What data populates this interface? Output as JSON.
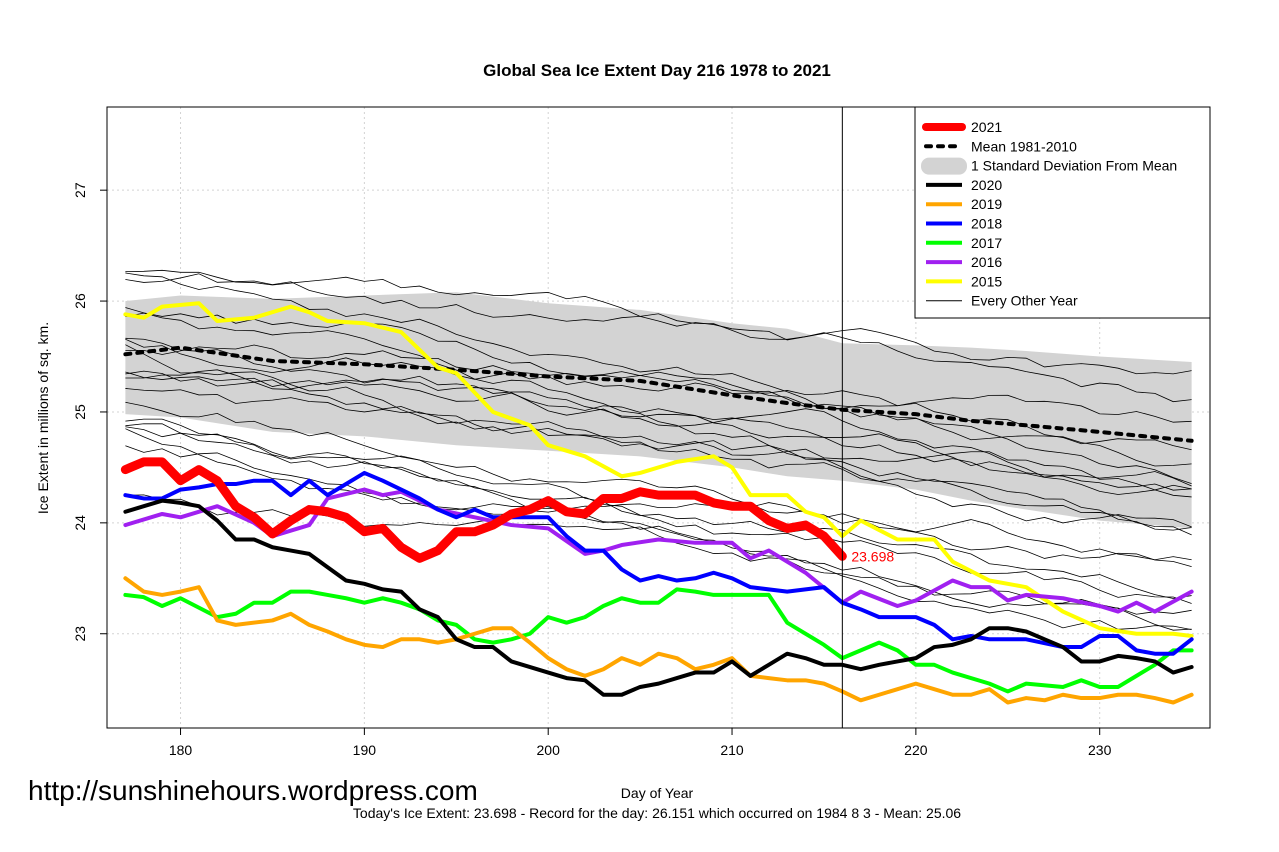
{
  "chart_data": {
    "type": "line",
    "title": "Global Sea Ice Extent Day 216 1978 to 2021",
    "xlabel": "Day of Year",
    "ylabel": "Ice Extent in millions of sq. km.",
    "xlim": [
      176,
      236
    ],
    "ylim": [
      22.15,
      27.75
    ],
    "x_ticks": [
      180,
      190,
      200,
      210,
      220,
      230
    ],
    "y_ticks": [
      23,
      24,
      25,
      26,
      27
    ],
    "x_tick_labels": [
      "180",
      "190",
      "200",
      "210",
      "220",
      "230"
    ],
    "y_tick_labels": [
      "23",
      "24",
      "25",
      "26",
      "27"
    ],
    "grid": true,
    "current_day": 216,
    "current_value_label": "23.698",
    "footer": "Today's Ice Extent: 23.698  - Record for the day: 26.151 which occurred on 1984 8 3  - Mean: 25.06",
    "watermark": "http://sunshinehours.wordpress.com",
    "legend": [
      {
        "label": "2021",
        "color": "#ff0000",
        "style": "thick"
      },
      {
        "label": "Mean 1981-2010",
        "color": "#000000",
        "style": "dotted"
      },
      {
        "label": "1 Standard Deviation From Mean",
        "color": "#d3d3d3",
        "style": "band"
      },
      {
        "label": "2020",
        "color": "#000000",
        "style": "line"
      },
      {
        "label": "2019",
        "color": "#ffa500",
        "style": "line"
      },
      {
        "label": "2018",
        "color": "#0000ff",
        "style": "line"
      },
      {
        "label": "2017",
        "color": "#00ff00",
        "style": "line"
      },
      {
        "label": "2016",
        "color": "#a020f0",
        "style": "line"
      },
      {
        "label": "2015",
        "color": "#ffff00",
        "style": "line"
      },
      {
        "label": "Every Other Year",
        "color": "#000000",
        "style": "thin"
      }
    ],
    "mean": {
      "x": [
        177,
        180,
        185,
        190,
        195,
        200,
        205,
        210,
        213,
        216,
        220,
        223,
        226,
        230,
        235
      ],
      "y": [
        25.52,
        25.58,
        25.46,
        25.43,
        25.38,
        25.32,
        25.28,
        25.15,
        25.08,
        25.02,
        24.98,
        24.92,
        24.88,
        24.82,
        24.74
      ]
    },
    "std_band": {
      "x": [
        177,
        180,
        185,
        190,
        195,
        200,
        205,
        210,
        213,
        216,
        220,
        223,
        226,
        230,
        235
      ],
      "upper": [
        26.0,
        26.05,
        26.02,
        26.05,
        26.08,
        25.98,
        25.92,
        25.8,
        25.75,
        25.62,
        25.6,
        25.58,
        25.55,
        25.5,
        25.45
      ],
      "lower": [
        24.98,
        24.95,
        24.82,
        24.78,
        24.7,
        24.65,
        24.6,
        24.5,
        24.42,
        24.38,
        24.3,
        24.2,
        24.12,
        24.02,
        23.95
      ]
    },
    "series": [
      {
        "name": "2015",
        "color": "#ffff00",
        "width": 4,
        "x": [
          177,
          178,
          179,
          181,
          182,
          184,
          186,
          187,
          188,
          190,
          192,
          194,
          195,
          197,
          199,
          200,
          202,
          204,
          205,
          207,
          209,
          210,
          211,
          213,
          214,
          215,
          216,
          217,
          219,
          221,
          222,
          224,
          226,
          228,
          230,
          232,
          234,
          235
        ],
        "y": [
          25.88,
          25.85,
          25.95,
          25.98,
          25.82,
          25.85,
          25.95,
          25.9,
          25.82,
          25.8,
          25.72,
          25.4,
          25.35,
          25.0,
          24.88,
          24.7,
          24.6,
          24.42,
          24.45,
          24.55,
          24.6,
          24.5,
          24.25,
          24.25,
          24.1,
          24.05,
          23.88,
          24.02,
          23.85,
          23.85,
          23.65,
          23.48,
          23.42,
          23.2,
          23.05,
          23.0,
          23.0,
          22.98
        ]
      },
      {
        "name": "2016",
        "color": "#a020f0",
        "width": 4,
        "x": [
          177,
          179,
          180,
          182,
          184,
          185,
          187,
          188,
          190,
          191,
          192,
          194,
          196,
          198,
          200,
          202,
          203,
          204,
          206,
          208,
          210,
          211,
          212,
          214,
          216,
          217,
          219,
          220,
          222,
          223,
          224,
          225,
          226,
          228,
          230,
          231,
          232,
          233,
          235
        ],
        "y": [
          23.98,
          24.08,
          24.05,
          24.15,
          24.0,
          23.88,
          23.98,
          24.22,
          24.3,
          24.25,
          24.28,
          24.12,
          24.05,
          23.98,
          23.95,
          23.72,
          23.75,
          23.8,
          23.85,
          23.82,
          23.82,
          23.68,
          23.75,
          23.55,
          23.28,
          23.38,
          23.25,
          23.3,
          23.48,
          23.42,
          23.42,
          23.3,
          23.35,
          23.32,
          23.25,
          23.2,
          23.28,
          23.2,
          23.38
        ]
      },
      {
        "name": "2017",
        "color": "#00ff00",
        "width": 4,
        "x": [
          177,
          178,
          179,
          180,
          182,
          183,
          184,
          185,
          186,
          187,
          188,
          189,
          190,
          191,
          192,
          193,
          194,
          195,
          196,
          197,
          198,
          199,
          200,
          201,
          202,
          203,
          204,
          205,
          206,
          207,
          208,
          209,
          210,
          211,
          212,
          213,
          215,
          216,
          217,
          218,
          219,
          220,
          221,
          222,
          224,
          225,
          226,
          228,
          229,
          230,
          231,
          232,
          233,
          234,
          235
        ],
        "y": [
          23.35,
          23.33,
          23.25,
          23.32,
          23.15,
          23.18,
          23.28,
          23.28,
          23.38,
          23.38,
          23.35,
          23.32,
          23.28,
          23.32,
          23.28,
          23.22,
          23.12,
          23.08,
          22.95,
          22.92,
          22.95,
          23.0,
          23.15,
          23.1,
          23.15,
          23.25,
          23.32,
          23.28,
          23.28,
          23.4,
          23.38,
          23.35,
          23.35,
          23.35,
          23.35,
          23.1,
          22.9,
          22.78,
          22.85,
          22.92,
          22.85,
          22.72,
          22.72,
          22.65,
          22.55,
          22.48,
          22.55,
          22.52,
          22.58,
          22.52,
          22.52,
          22.62,
          22.72,
          22.85,
          22.85
        ]
      },
      {
        "name": "2018",
        "color": "#0000ff",
        "width": 4,
        "x": [
          177,
          178,
          179,
          180,
          181,
          182,
          183,
          184,
          185,
          186,
          187,
          188,
          190,
          191,
          192,
          193,
          194,
          195,
          196,
          197,
          198,
          200,
          201,
          202,
          203,
          204,
          205,
          206,
          207,
          208,
          209,
          210,
          211,
          213,
          215,
          216,
          217,
          218,
          220,
          221,
          222,
          223,
          224,
          226,
          228,
          229,
          230,
          231,
          232,
          233,
          234,
          235
        ],
        "y": [
          24.25,
          24.22,
          24.22,
          24.3,
          24.32,
          24.35,
          24.35,
          24.38,
          24.38,
          24.25,
          24.38,
          24.25,
          24.45,
          24.38,
          24.3,
          24.22,
          24.12,
          24.05,
          24.12,
          24.05,
          24.05,
          24.05,
          23.88,
          23.75,
          23.75,
          23.58,
          23.48,
          23.52,
          23.48,
          23.5,
          23.55,
          23.5,
          23.42,
          23.38,
          23.42,
          23.28,
          23.22,
          23.15,
          23.15,
          23.08,
          22.95,
          22.98,
          22.95,
          22.95,
          22.88,
          22.88,
          22.98,
          22.98,
          22.85,
          22.82,
          22.82,
          22.95
        ]
      },
      {
        "name": "2019",
        "color": "#ffa500",
        "width": 4,
        "x": [
          177,
          178,
          179,
          180,
          181,
          182,
          183,
          185,
          186,
          187,
          188,
          189,
          190,
          191,
          192,
          193,
          194,
          195,
          196,
          197,
          198,
          199,
          200,
          201,
          202,
          203,
          204,
          205,
          206,
          207,
          208,
          209,
          210,
          211,
          212,
          213,
          214,
          215,
          216,
          217,
          218,
          219,
          220,
          221,
          222,
          223,
          224,
          225,
          226,
          227,
          228,
          229,
          230,
          231,
          232,
          233,
          234,
          235
        ],
        "y": [
          23.5,
          23.38,
          23.35,
          23.38,
          23.42,
          23.12,
          23.08,
          23.12,
          23.18,
          23.08,
          23.02,
          22.95,
          22.9,
          22.88,
          22.95,
          22.95,
          22.92,
          22.95,
          23.0,
          23.05,
          23.05,
          22.92,
          22.78,
          22.68,
          22.62,
          22.68,
          22.78,
          22.72,
          22.82,
          22.78,
          22.68,
          22.72,
          22.78,
          22.62,
          22.6,
          22.58,
          22.58,
          22.55,
          22.48,
          22.4,
          22.45,
          22.5,
          22.55,
          22.5,
          22.45,
          22.45,
          22.5,
          22.38,
          22.42,
          22.4,
          22.45,
          22.42,
          22.42,
          22.45,
          22.45,
          22.42,
          22.38,
          22.45
        ]
      },
      {
        "name": "2020",
        "color": "#000000",
        "width": 4,
        "x": [
          177,
          178,
          179,
          180,
          181,
          182,
          183,
          184,
          185,
          186,
          187,
          188,
          189,
          190,
          191,
          192,
          193,
          194,
          195,
          196,
          197,
          198,
          200,
          201,
          202,
          203,
          204,
          205,
          206,
          207,
          208,
          209,
          210,
          211,
          212,
          213,
          214,
          215,
          216,
          217,
          218,
          219,
          220,
          221,
          222,
          223,
          224,
          225,
          226,
          227,
          228,
          229,
          230,
          231,
          232,
          233,
          234,
          235
        ],
        "y": [
          24.1,
          24.15,
          24.2,
          24.18,
          24.15,
          24.02,
          23.85,
          23.85,
          23.78,
          23.75,
          23.72,
          23.6,
          23.48,
          23.45,
          23.4,
          23.38,
          23.22,
          23.15,
          22.95,
          22.88,
          22.88,
          22.75,
          22.65,
          22.6,
          22.58,
          22.45,
          22.45,
          22.52,
          22.55,
          22.6,
          22.65,
          22.65,
          22.75,
          22.62,
          22.72,
          22.82,
          22.78,
          22.72,
          22.72,
          22.68,
          22.72,
          22.75,
          22.78,
          22.88,
          22.9,
          22.95,
          23.05,
          23.05,
          23.02,
          22.95,
          22.88,
          22.75,
          22.75,
          22.8,
          22.78,
          22.75,
          22.65,
          22.7
        ]
      },
      {
        "name": "2021",
        "color": "#ff0000",
        "width": 9,
        "x": [
          177,
          178,
          179,
          180,
          181,
          182,
          183,
          184,
          185,
          186,
          187,
          188,
          189,
          190,
          191,
          192,
          193,
          194,
          195,
          196,
          197,
          198,
          199,
          200,
          201,
          202,
          203,
          204,
          205,
          206,
          207,
          208,
          209,
          210,
          211,
          212,
          213,
          214,
          215,
          216
        ],
        "y": [
          24.48,
          24.55,
          24.55,
          24.38,
          24.48,
          24.38,
          24.15,
          24.05,
          23.9,
          24.02,
          24.12,
          24.1,
          24.05,
          23.92,
          23.95,
          23.78,
          23.68,
          23.75,
          23.92,
          23.92,
          23.98,
          24.08,
          24.12,
          24.2,
          24.1,
          24.08,
          24.22,
          24.22,
          24.28,
          24.25,
          24.25,
          24.25,
          24.18,
          24.15,
          24.15,
          24.02,
          23.95,
          23.98,
          23.88,
          23.698
        ]
      }
    ],
    "other_years_count": 20
  }
}
